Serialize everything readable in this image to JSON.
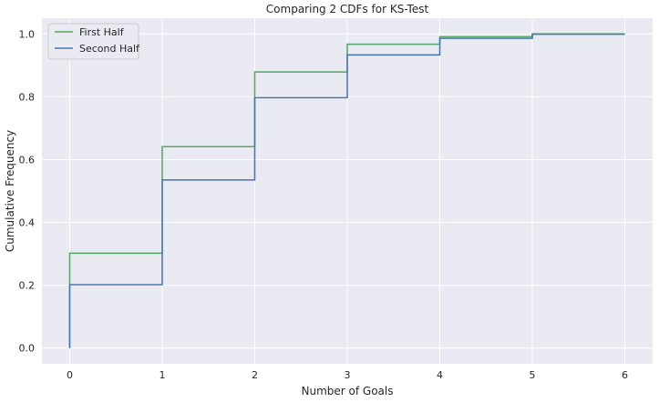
{
  "chart_data": {
    "type": "line",
    "title": "Comparing 2 CDFs for KS-Test",
    "xlabel": "Number of Goals",
    "ylabel": "Cumulative Frequency",
    "xlim": [
      -0.3,
      6.3
    ],
    "ylim": [
      -0.05,
      1.05
    ],
    "xticks": [
      0,
      1,
      2,
      3,
      4,
      5,
      6
    ],
    "yticks": [
      0.0,
      0.2,
      0.4,
      0.6,
      0.8,
      1.0
    ],
    "ytick_labels": [
      "0.0",
      "0.2",
      "0.4",
      "0.6",
      "0.8",
      "1.0"
    ],
    "grid": true,
    "legend": "upper-left",
    "series": [
      {
        "name": "First Half",
        "color": "#55a868",
        "x": [
          0,
          0,
          1,
          1,
          2,
          2,
          3,
          3,
          4,
          4,
          5,
          5,
          6
        ],
        "y": [
          0.0,
          0.302,
          0.302,
          0.641,
          0.641,
          0.879,
          0.879,
          0.967,
          0.967,
          0.991,
          0.991,
          1.0,
          1.0
        ]
      },
      {
        "name": "Second Half",
        "color": "#4c72b0",
        "x": [
          0,
          0,
          1,
          1,
          2,
          2,
          3,
          3,
          4,
          4,
          5,
          5,
          6
        ],
        "y": [
          0.0,
          0.202,
          0.202,
          0.535,
          0.535,
          0.797,
          0.797,
          0.933,
          0.933,
          0.986,
          0.986,
          0.999,
          0.999
        ]
      }
    ]
  }
}
